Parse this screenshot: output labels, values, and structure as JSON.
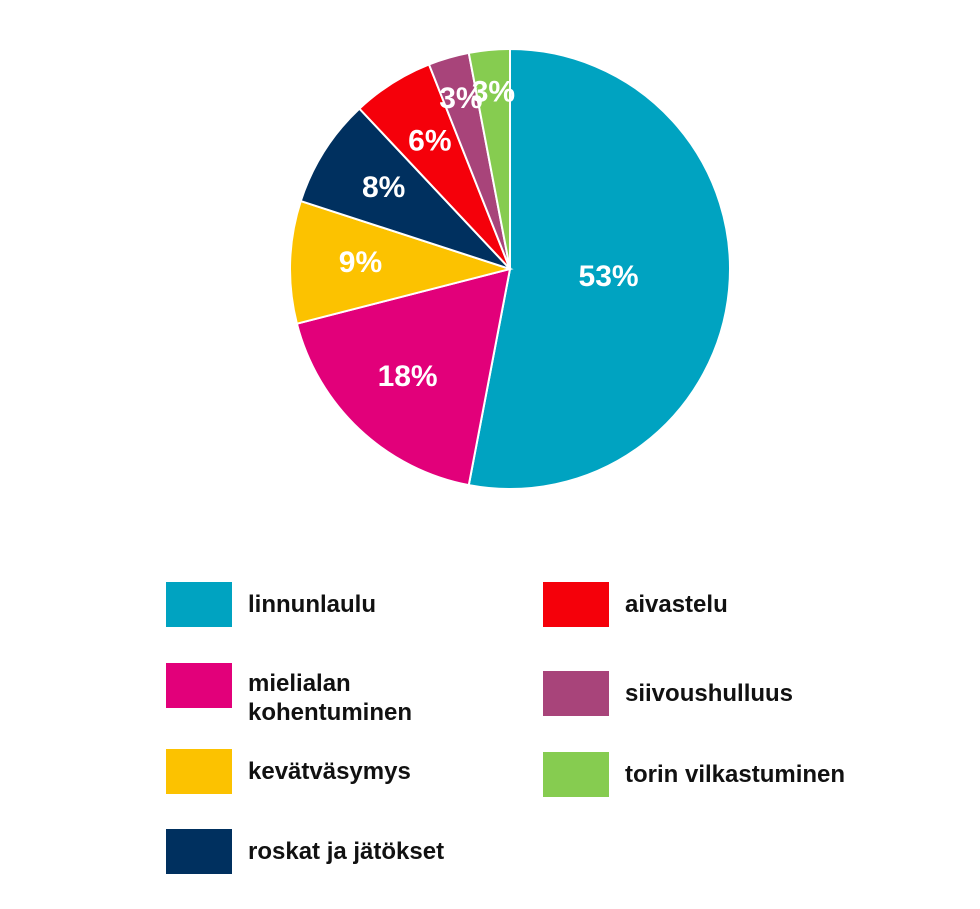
{
  "chart_data": {
    "type": "pie",
    "categories": [
      "linnunlaulu",
      "mielialan kohentuminen",
      "kevätväsymys",
      "roskat ja jätökset",
      "aivastelu",
      "siivoushulluus",
      "torin vilkastuminen"
    ],
    "values": [
      53,
      18,
      9,
      8,
      6,
      3,
      3
    ],
    "value_labels": [
      "53%",
      "18%",
      "9%",
      "8%",
      "6%",
      "3%",
      "3%"
    ],
    "colors": [
      "#00a3c1",
      "#e2007a",
      "#fcc200",
      "#00305f",
      "#f5000a",
      "#a8447a",
      "#86cc50"
    ]
  }
}
